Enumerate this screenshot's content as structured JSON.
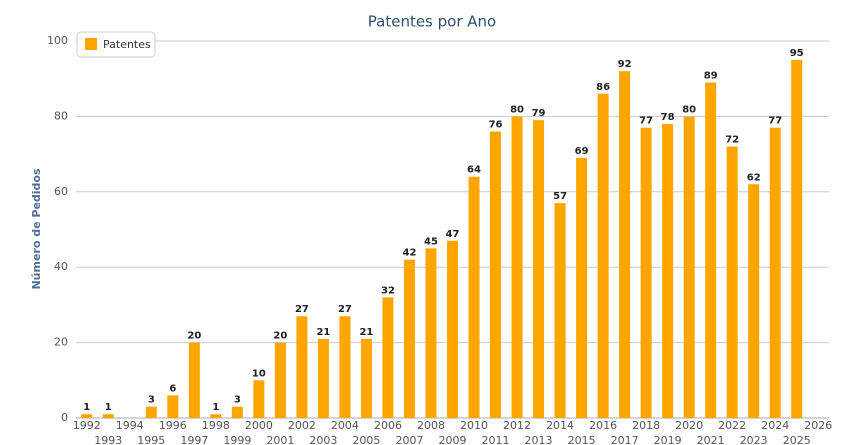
{
  "chart_data": {
    "type": "bar",
    "title": "Patentes por Ano",
    "y_label": "Número de Pedidos",
    "categories": [
      "1992",
      "1993",
      "1994",
      "1995",
      "1996",
      "1997",
      "1998",
      "1999",
      "2000",
      "2001",
      "2002",
      "2003",
      "2004",
      "2005",
      "2006",
      "2007",
      "2008",
      "2009",
      "2010",
      "2011",
      "2012",
      "2013",
      "2014",
      "2015",
      "2016",
      "2017",
      "2018",
      "2019",
      "2020",
      "2021",
      "2022",
      "2023",
      "2024",
      "2025",
      "2026"
    ],
    "series": [
      {
        "name": "Patentes",
        "color": "#ffa500",
        "values": [
          1,
          1,
          null,
          3,
          6,
          20,
          1,
          3,
          10,
          20,
          27,
          21,
          27,
          21,
          32,
          42,
          45,
          47,
          64,
          76,
          80,
          79,
          57,
          69,
          86,
          92,
          77,
          78,
          80,
          89,
          72,
          62,
          77,
          95,
          null
        ]
      }
    ],
    "ylim": [
      0,
      100
    ],
    "yticks": [
      0,
      20,
      40,
      60,
      80,
      100
    ],
    "grid": true,
    "legend": "top-left"
  }
}
